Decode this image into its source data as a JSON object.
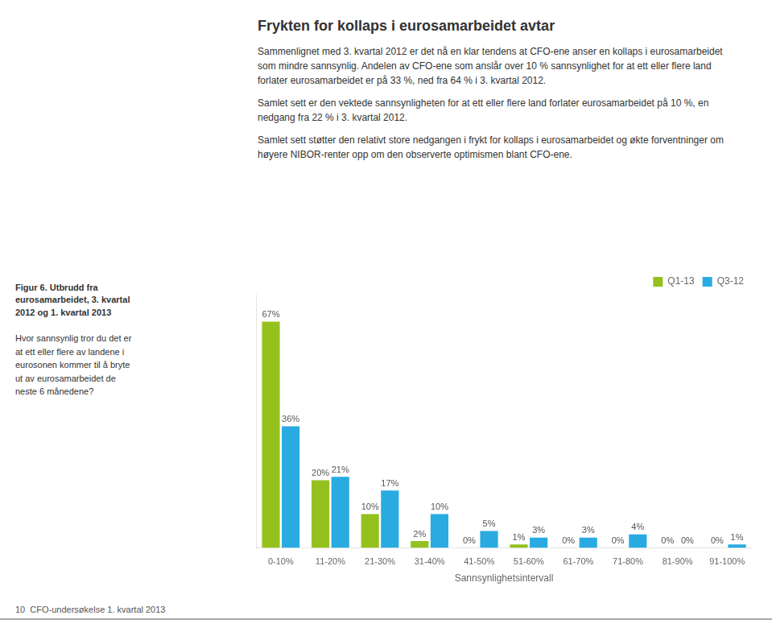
{
  "chart_data": {
    "type": "bar",
    "title": "Frykten for kollaps i eurosamarbeidet avtar",
    "xlabel": "Sannsynlighetsintervall",
    "categories": [
      "0-10%",
      "11-20%",
      "21-30%",
      "31-40%",
      "41-50%",
      "51-60%",
      "61-70%",
      "71-80%",
      "81-90%",
      "91-100%"
    ],
    "series": [
      {
        "name": "Q1-13",
        "color": "#95C11F",
        "values": [
          67,
          20,
          10,
          2,
          0,
          1,
          0,
          0,
          0,
          0
        ],
        "value_labels": [
          "67%",
          "20%",
          "10%",
          "2%",
          "0%",
          "1%",
          "0%",
          "0%",
          "0%",
          "0%"
        ]
      },
      {
        "name": "Q3-12",
        "color": "#29ABE2",
        "values": [
          36,
          21,
          17,
          10,
          5,
          3,
          3,
          4,
          0,
          1
        ],
        "value_labels": [
          "36%",
          "21%",
          "17%",
          "10%",
          "5%",
          "3%",
          "3%",
          "4%",
          "0%",
          "1%"
        ]
      }
    ],
    "ylim": [
      0,
      75
    ],
    "grid": false,
    "legend": "upper right",
    "data_labels": true,
    "tick_labels": "x",
    "annotations": [
      "Sammenlignet med 3. kvartal 2012 er det nå en klar tendens at CFO-ene anser en kollaps i eurosamarbeidet som mindre sannsynlig. Andelen av CFO-ene som anslår over 10 % sannsynlighet for at ett eller flere land forlater eurosamarbeidet er på 33 %, ned fra 64 % i 3. kvartal 2012.",
      "Samlet sett er den vektede sannsynligheten for at ett eller flere land forlater eurosamarbeidet på 10 %, en nedgang fra 22 % i 3. kvartal 2012.",
      "Samlet sett støtter den relativt store nedgangen i frykt for kollaps i eurosamarbeidet og økte forventninger om høyere NIBOR-renter opp om den observerte optimismen blant CFO-ene.",
      "Figur 6. Utbrudd fra\neurosamarbeidet, 3. kvartal\n2012 og 1. kvartal 2013",
      "Hvor sannsynlig tror du det er\nat ett eller flere av landene i\neurosonen kommer til å bryte\nut av eurosamarbeidet de\nneste 6 månedene?",
      "10  CFO-undersøkelse 1. kvartal 2013"
    ]
  }
}
